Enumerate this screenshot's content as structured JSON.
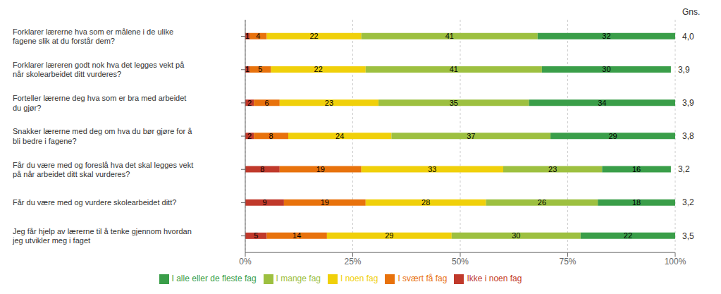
{
  "chart_data": {
    "type": "bar",
    "orientation": "horizontal",
    "stacked": true,
    "data_labels": true,
    "grid": true,
    "legend": "bottom",
    "categories": [
      "Forklarer lærerne hva som er målene i de ulike\nfagene slik at du forstår dem?",
      "Forklarer læreren godt nok hva det legges vekt på\nnår skolearbeidet ditt vurderes?",
      "Forteller lærerne deg hva som er bra med arbeidet\ndu gjør?",
      "Snakker lærerne med deg om hva du bør gjøre for å\nbli bedre i fagene?",
      "Får du være med og foreslå hva det skal legges vekt\npå når arbeidet ditt skal vurderes?",
      "Får du være med og vurdere skolearbeidet ditt?",
      "Jeg får hjelp av lærerne til å tenke gjennom hvordan\njeg utvikler meg i faget"
    ],
    "series": [
      {
        "name": "Ikke i noen fag",
        "color": "#c0392b",
        "values": [
          1,
          1,
          2,
          2,
          8,
          9,
          5
        ]
      },
      {
        "name": "I svært få fag",
        "color": "#e8720c",
        "values": [
          4,
          5,
          6,
          8,
          19,
          19,
          14
        ]
      },
      {
        "name": "I noen fag",
        "color": "#f0d00a",
        "values": [
          22,
          22,
          23,
          24,
          33,
          28,
          29
        ]
      },
      {
        "name": "I mange fag",
        "color": "#9dc040",
        "values": [
          41,
          41,
          35,
          37,
          23,
          26,
          30
        ]
      },
      {
        "name": "I alle eller de fleste fag",
        "color": "#3a9e49",
        "values": [
          32,
          30,
          34,
          29,
          16,
          18,
          22
        ]
      }
    ],
    "averages": {
      "name": "Gns.",
      "values": [
        4.0,
        3.9,
        3.9,
        3.8,
        3.2,
        3.2,
        3.5
      ],
      "value_labels": [
        "4,0",
        "3,9",
        "3,9",
        "3,8",
        "3,2",
        "3,2",
        "3,5"
      ]
    },
    "xlim": [
      0,
      100
    ],
    "xticks": [
      {
        "value": 0,
        "label": "0%"
      },
      {
        "value": 25,
        "label": "25%"
      },
      {
        "value": 50,
        "label": "50%"
      },
      {
        "value": 75,
        "label": "75%"
      },
      {
        "value": 100,
        "label": "100%"
      }
    ]
  }
}
